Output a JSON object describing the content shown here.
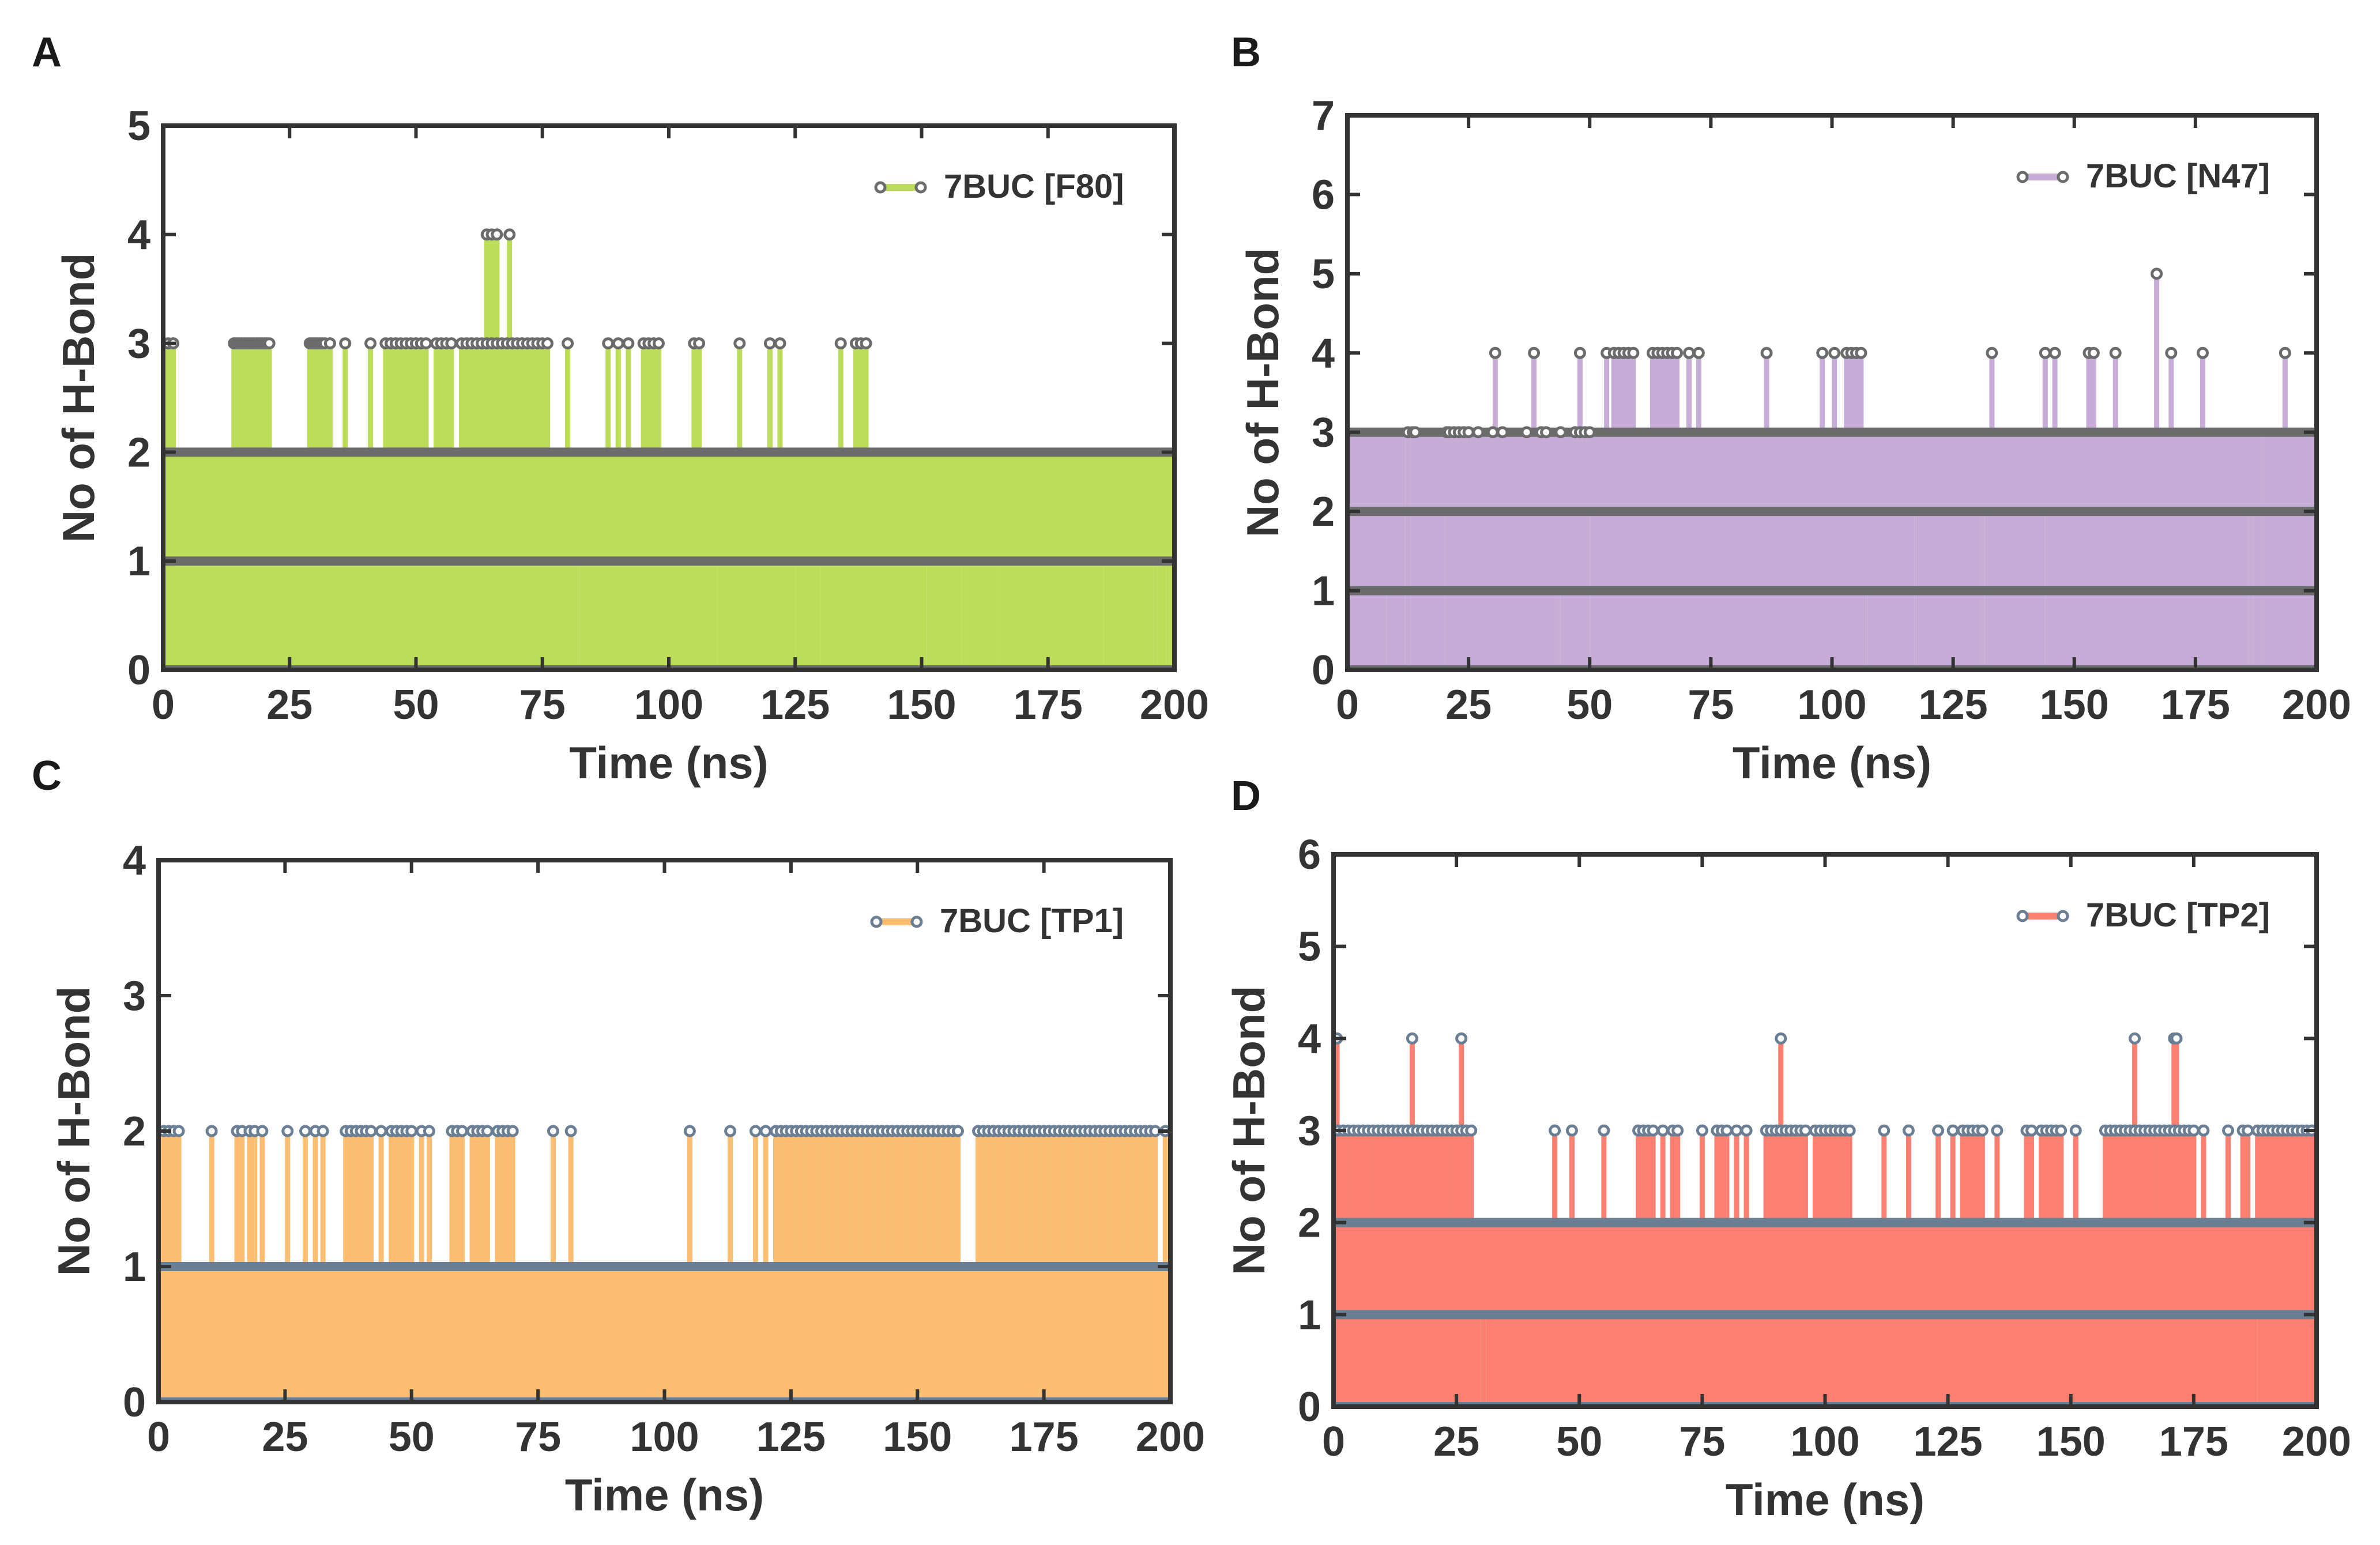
{
  "chart_data": [
    {
      "panel": "A",
      "type": "line",
      "xlabel": "Time (ns)",
      "ylabel": "No of H-Bond",
      "xlim": [
        0,
        200
      ],
      "ylim": [
        0,
        5
      ],
      "xticks": [
        0,
        25,
        50,
        75,
        100,
        125,
        150,
        175,
        200
      ],
      "yticks": [
        0,
        1,
        2,
        3,
        4,
        5
      ],
      "color": "#bcdd5a",
      "marker_color": "#6b6b6b",
      "legend": {
        "label": "7BUC [F80]",
        "position": "top-right"
      },
      "series": [
        {
          "name": "7BUC [F80]",
          "baseline": [
            [
              0,
              200,
              2
            ],
            [
              82,
              82.4,
              1
            ],
            [
              108.5,
              109.5,
              1
            ],
            [
              124,
              125,
              1
            ],
            [
              130,
              130.5,
              1
            ],
            [
              150,
              151,
              1
            ],
            [
              158,
              159,
              1
            ],
            [
              165,
              165.5,
              1
            ],
            [
              178,
              178.5,
              1
            ],
            [
              186,
              187,
              1
            ],
            [
              196,
              196.5,
              1
            ],
            [
              198.5,
              199,
              1
            ]
          ],
          "peaks3": [
            1,
            2,
            14,
            14.5,
            15,
            15.5,
            16,
            16.5,
            17,
            17.5,
            18,
            18.5,
            19,
            19.5,
            20,
            20.5,
            21,
            29,
            29.5,
            30,
            30.5,
            31,
            31.5,
            32,
            33,
            36,
            41,
            44,
            45,
            46,
            47,
            48,
            49,
            50,
            51,
            52,
            54,
            55,
            56,
            57,
            59,
            60,
            61,
            62,
            63,
            64,
            65,
            66,
            67,
            68,
            69,
            70,
            71,
            72,
            73,
            74,
            75,
            76,
            80,
            88,
            90,
            92,
            95,
            96,
            97,
            98,
            105,
            106,
            114,
            120,
            122,
            134,
            137,
            138,
            139
          ],
          "peaks4": [
            64,
            65,
            66,
            68.5
          ]
        }
      ]
    },
    {
      "panel": "B",
      "type": "line",
      "xlabel": "Time (ns)",
      "ylabel": "No of H-Bond",
      "xlim": [
        0,
        200
      ],
      "ylim": [
        0,
        7
      ],
      "xticks": [
        0,
        25,
        50,
        75,
        100,
        125,
        150,
        175,
        200
      ],
      "yticks": [
        0,
        1,
        2,
        3,
        4,
        5,
        6,
        7
      ],
      "color": "#c6acd7",
      "marker_color": "#6b6b6b",
      "legend": {
        "label": "7BUC [N47]",
        "position": "top-right"
      },
      "series": [
        {
          "name": "7BUC [N47]",
          "baseline": [
            [
              0,
              200,
              3
            ],
            [
              0,
              12,
              2
            ],
            [
              7.5,
              8,
              1
            ],
            [
              12,
              13,
              3
            ],
            [
              13,
              20,
              2
            ],
            [
              20,
              50,
              2
            ],
            [
              43,
              44,
              1
            ],
            [
              106,
              106.6,
              0
            ],
            [
              107,
              107.4,
              1
            ],
            [
              117,
              117.4,
              2
            ],
            [
              131,
              131.5,
              2
            ],
            [
              144,
              144.5,
              2
            ],
            [
              186,
              187,
              2
            ],
            [
              189,
              200,
              3
            ]
          ],
          "peaks3": [
            12.5,
            13.5,
            14,
            20.5,
            21,
            22,
            23,
            24,
            25,
            27,
            30,
            32,
            37,
            40,
            41,
            44,
            47,
            48,
            49,
            50
          ],
          "peaks4": [
            30.5,
            38.5,
            48,
            53.5,
            55,
            56,
            57,
            58,
            59,
            63,
            64,
            65,
            66,
            67,
            68,
            70.5,
            72.5,
            86.5,
            98,
            100.5,
            103,
            104,
            105,
            106,
            133,
            144,
            146,
            153,
            154,
            158.5,
            170,
            176.5,
            193.5
          ],
          "peaks5": [
            167
          ]
        }
      ]
    },
    {
      "panel": "C",
      "type": "line",
      "xlabel": "Time (ns)",
      "ylabel": "No of H-Bond",
      "xlim": [
        0,
        200
      ],
      "ylim": [
        0,
        4
      ],
      "xticks": [
        0,
        25,
        50,
        75,
        100,
        125,
        150,
        175,
        200
      ],
      "yticks": [
        0,
        1,
        2,
        3,
        4
      ],
      "color": "#fbbe72",
      "marker_color": "#6a7f93",
      "legend": {
        "label": "7BUC [TP1]",
        "position": "top-right"
      },
      "series": [
        {
          "name": "7BUC [TP1]",
          "baseline": [
            [
              0,
              200,
              1
            ],
            [
              96,
              97,
              0
            ]
          ],
          "peaks2": [
            1,
            2,
            3,
            4,
            10.5,
            15.5,
            16.5,
            18,
            19,
            20.5,
            25.5,
            29,
            31,
            32.5,
            37,
            38,
            39,
            40,
            41,
            42,
            44,
            46,
            47,
            48,
            49,
            50,
            52,
            53.5,
            58,
            59,
            60,
            62,
            63,
            64,
            65,
            67,
            68,
            69,
            70,
            78,
            81.5,
            105,
            113,
            118,
            120,
            122,
            123,
            124,
            125,
            126,
            127,
            128,
            129,
            130,
            131,
            132,
            133,
            134,
            135,
            136,
            137,
            138,
            139,
            140,
            141,
            142,
            143,
            144,
            145,
            146,
            147,
            148,
            149,
            150,
            151,
            152,
            153,
            154,
            155,
            156,
            157,
            158,
            162,
            163,
            164,
            165,
            166,
            167,
            168,
            169,
            170,
            171,
            172,
            173,
            174,
            175,
            176,
            177,
            178,
            179,
            180,
            181,
            182,
            183,
            184,
            185,
            186,
            187,
            188,
            189,
            190,
            191,
            192,
            193,
            194,
            195,
            196,
            197,
            199
          ]
        }
      ]
    },
    {
      "panel": "D",
      "type": "line",
      "xlabel": "Time (ns)",
      "ylabel": "No of H-Bond",
      "xlim": [
        0,
        200
      ],
      "ylim": [
        0,
        6
      ],
      "xticks": [
        0,
        25,
        50,
        75,
        100,
        125,
        150,
        175,
        200
      ],
      "yticks": [
        0,
        1,
        2,
        3,
        4,
        5,
        6
      ],
      "color": "#fb8072",
      "marker_color": "#6a7f93",
      "legend": {
        "label": "7BUC [TP2]",
        "position": "top-right"
      },
      "series": [
        {
          "name": "7BUC [TP2]",
          "baseline": [
            [
              0,
              200,
              2
            ],
            [
              30,
              31,
              1
            ],
            [
              188,
              200,
              1
            ]
          ],
          "peaks3": [
            0.5,
            1,
            2,
            3,
            4,
            5,
            6,
            7,
            8,
            9,
            10,
            11,
            12,
            13,
            14,
            15,
            16,
            17,
            18,
            19,
            20,
            21,
            22,
            23,
            24,
            25,
            26,
            27,
            28,
            45,
            48.5,
            55,
            62,
            63,
            64,
            65,
            67,
            69,
            70,
            75,
            78,
            79,
            80,
            82,
            84,
            88,
            89,
            90,
            91,
            92,
            93,
            94,
            95,
            96,
            98,
            99,
            100,
            101,
            102,
            103,
            104,
            105,
            112,
            117,
            123,
            126,
            128,
            129,
            130,
            131,
            132,
            135,
            141,
            142,
            144,
            145,
            146,
            147,
            148,
            151,
            157,
            158,
            159,
            160,
            161,
            162,
            163,
            164,
            165,
            166,
            167,
            168,
            169,
            170,
            171,
            172,
            173,
            174,
            175,
            177,
            182,
            185,
            186,
            188,
            189,
            190,
            191,
            192,
            193,
            194,
            195,
            196,
            197,
            198,
            199
          ],
          "peaks4": [
            0.7,
            16,
            26,
            91,
            163,
            171,
            171.5
          ]
        }
      ]
    }
  ]
}
